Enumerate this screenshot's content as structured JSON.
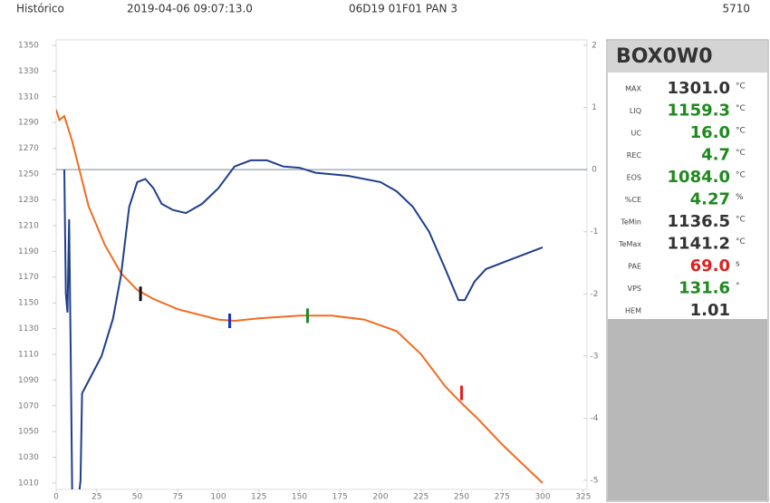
{
  "header": {
    "mode": "Histórico",
    "timestamp": "2019-04-06 09:07:13.0",
    "sample": "06D19 01F01 PAN 3",
    "id": "5710"
  },
  "chart_data": {
    "type": "line",
    "xlim": [
      0,
      325
    ],
    "xticks": [
      0,
      25,
      50,
      75,
      100,
      125,
      150,
      175,
      200,
      225,
      250,
      275,
      300,
      325
    ],
    "ylim": [
      1010,
      1350
    ],
    "yticks": [
      1010,
      1030,
      1050,
      1070,
      1090,
      1110,
      1130,
      1150,
      1170,
      1190,
      1210,
      1230,
      1250,
      1270,
      1290,
      1310,
      1330,
      1350
    ],
    "y2lim": [
      -5,
      2
    ],
    "y2ticks": [
      -5,
      -4,
      -3,
      -2,
      -1,
      0,
      1,
      2
    ],
    "series": [
      {
        "color": "#f26b21",
        "x": [
          0,
          2,
          5,
          10,
          15,
          20,
          30,
          40,
          50,
          60,
          75,
          100,
          110,
          125,
          150,
          170,
          190,
          210,
          225,
          240,
          250,
          260,
          275,
          290,
          300
        ],
        "values": [
          1300,
          1292,
          1295,
          1275,
          1250,
          1225,
          1195,
          1173,
          1160,
          1153,
          1145,
          1137,
          1136,
          1138,
          1140,
          1140,
          1137,
          1128,
          1110,
          1085,
          1072,
          1060,
          1040,
          1022,
          1010
        ]
      },
      {
        "color": "#1f3f8a",
        "axis": "y2",
        "x": [
          5,
          6,
          7,
          8,
          9,
          10,
          13,
          15,
          16,
          18,
          22,
          28,
          35,
          40,
          45,
          50,
          55,
          60,
          65,
          72,
          80,
          90,
          100,
          110,
          120,
          130,
          140,
          150,
          160,
          180,
          200,
          210,
          220,
          230,
          240,
          248,
          252,
          258,
          265,
          280,
          300
        ],
        "values": [
          0,
          -2,
          -2.3,
          -0.8,
          -3,
          -5.5,
          -5.5,
          -5,
          -3.6,
          -3.5,
          -3.3,
          -3,
          -2.4,
          -1.7,
          -0.6,
          -0.2,
          -0.15,
          -0.3,
          -0.55,
          -0.65,
          -0.7,
          -0.55,
          -0.3,
          0.05,
          0.15,
          0.15,
          0.05,
          0.03,
          -0.05,
          -0.1,
          -0.2,
          -0.35,
          -0.6,
          -1.0,
          -1.6,
          -2.1,
          -2.1,
          -1.8,
          -1.6,
          -1.45,
          -1.25
        ]
      }
    ],
    "markers": [
      {
        "x": 52,
        "y": 1157,
        "color": "#111111"
      },
      {
        "x": 107,
        "y": 1136,
        "color": "#1a2fd0"
      },
      {
        "x": 155,
        "y": 1140,
        "color": "#1e8a2a"
      },
      {
        "x": 250,
        "y": 1080,
        "color": "#e02020"
      }
    ]
  },
  "panel": {
    "title": "BOX0W0",
    "rows": [
      {
        "label": "MAX",
        "value": "1301.0",
        "unit": "°C",
        "color": "#333333"
      },
      {
        "label": "LIQ",
        "value": "1159.3",
        "unit": "°C",
        "color": "#1e8a1e"
      },
      {
        "label": "UC",
        "value": "16.0",
        "unit": "°C",
        "color": "#1e8a1e"
      },
      {
        "label": "REC",
        "value": "4.7",
        "unit": "°C",
        "color": "#1e8a1e"
      },
      {
        "label": "EOS",
        "value": "1084.0",
        "unit": "°C",
        "color": "#1e8a1e"
      },
      {
        "label": "%CE",
        "value": "4.27",
        "unit": "%",
        "color": "#1e8a1e"
      },
      {
        "label": "TeMin",
        "value": "1136.5",
        "unit": "°C",
        "color": "#333333"
      },
      {
        "label": "TeMax",
        "value": "1141.2",
        "unit": "°C",
        "color": "#333333"
      },
      {
        "label": "PAE",
        "value": "69.0",
        "unit": "s",
        "color": "#e02020"
      },
      {
        "label": "VPS",
        "value": "131.6",
        "unit": "°",
        "color": "#1e8a1e"
      },
      {
        "label": "HEM",
        "value": "1.01",
        "color": "#333333"
      }
    ]
  }
}
